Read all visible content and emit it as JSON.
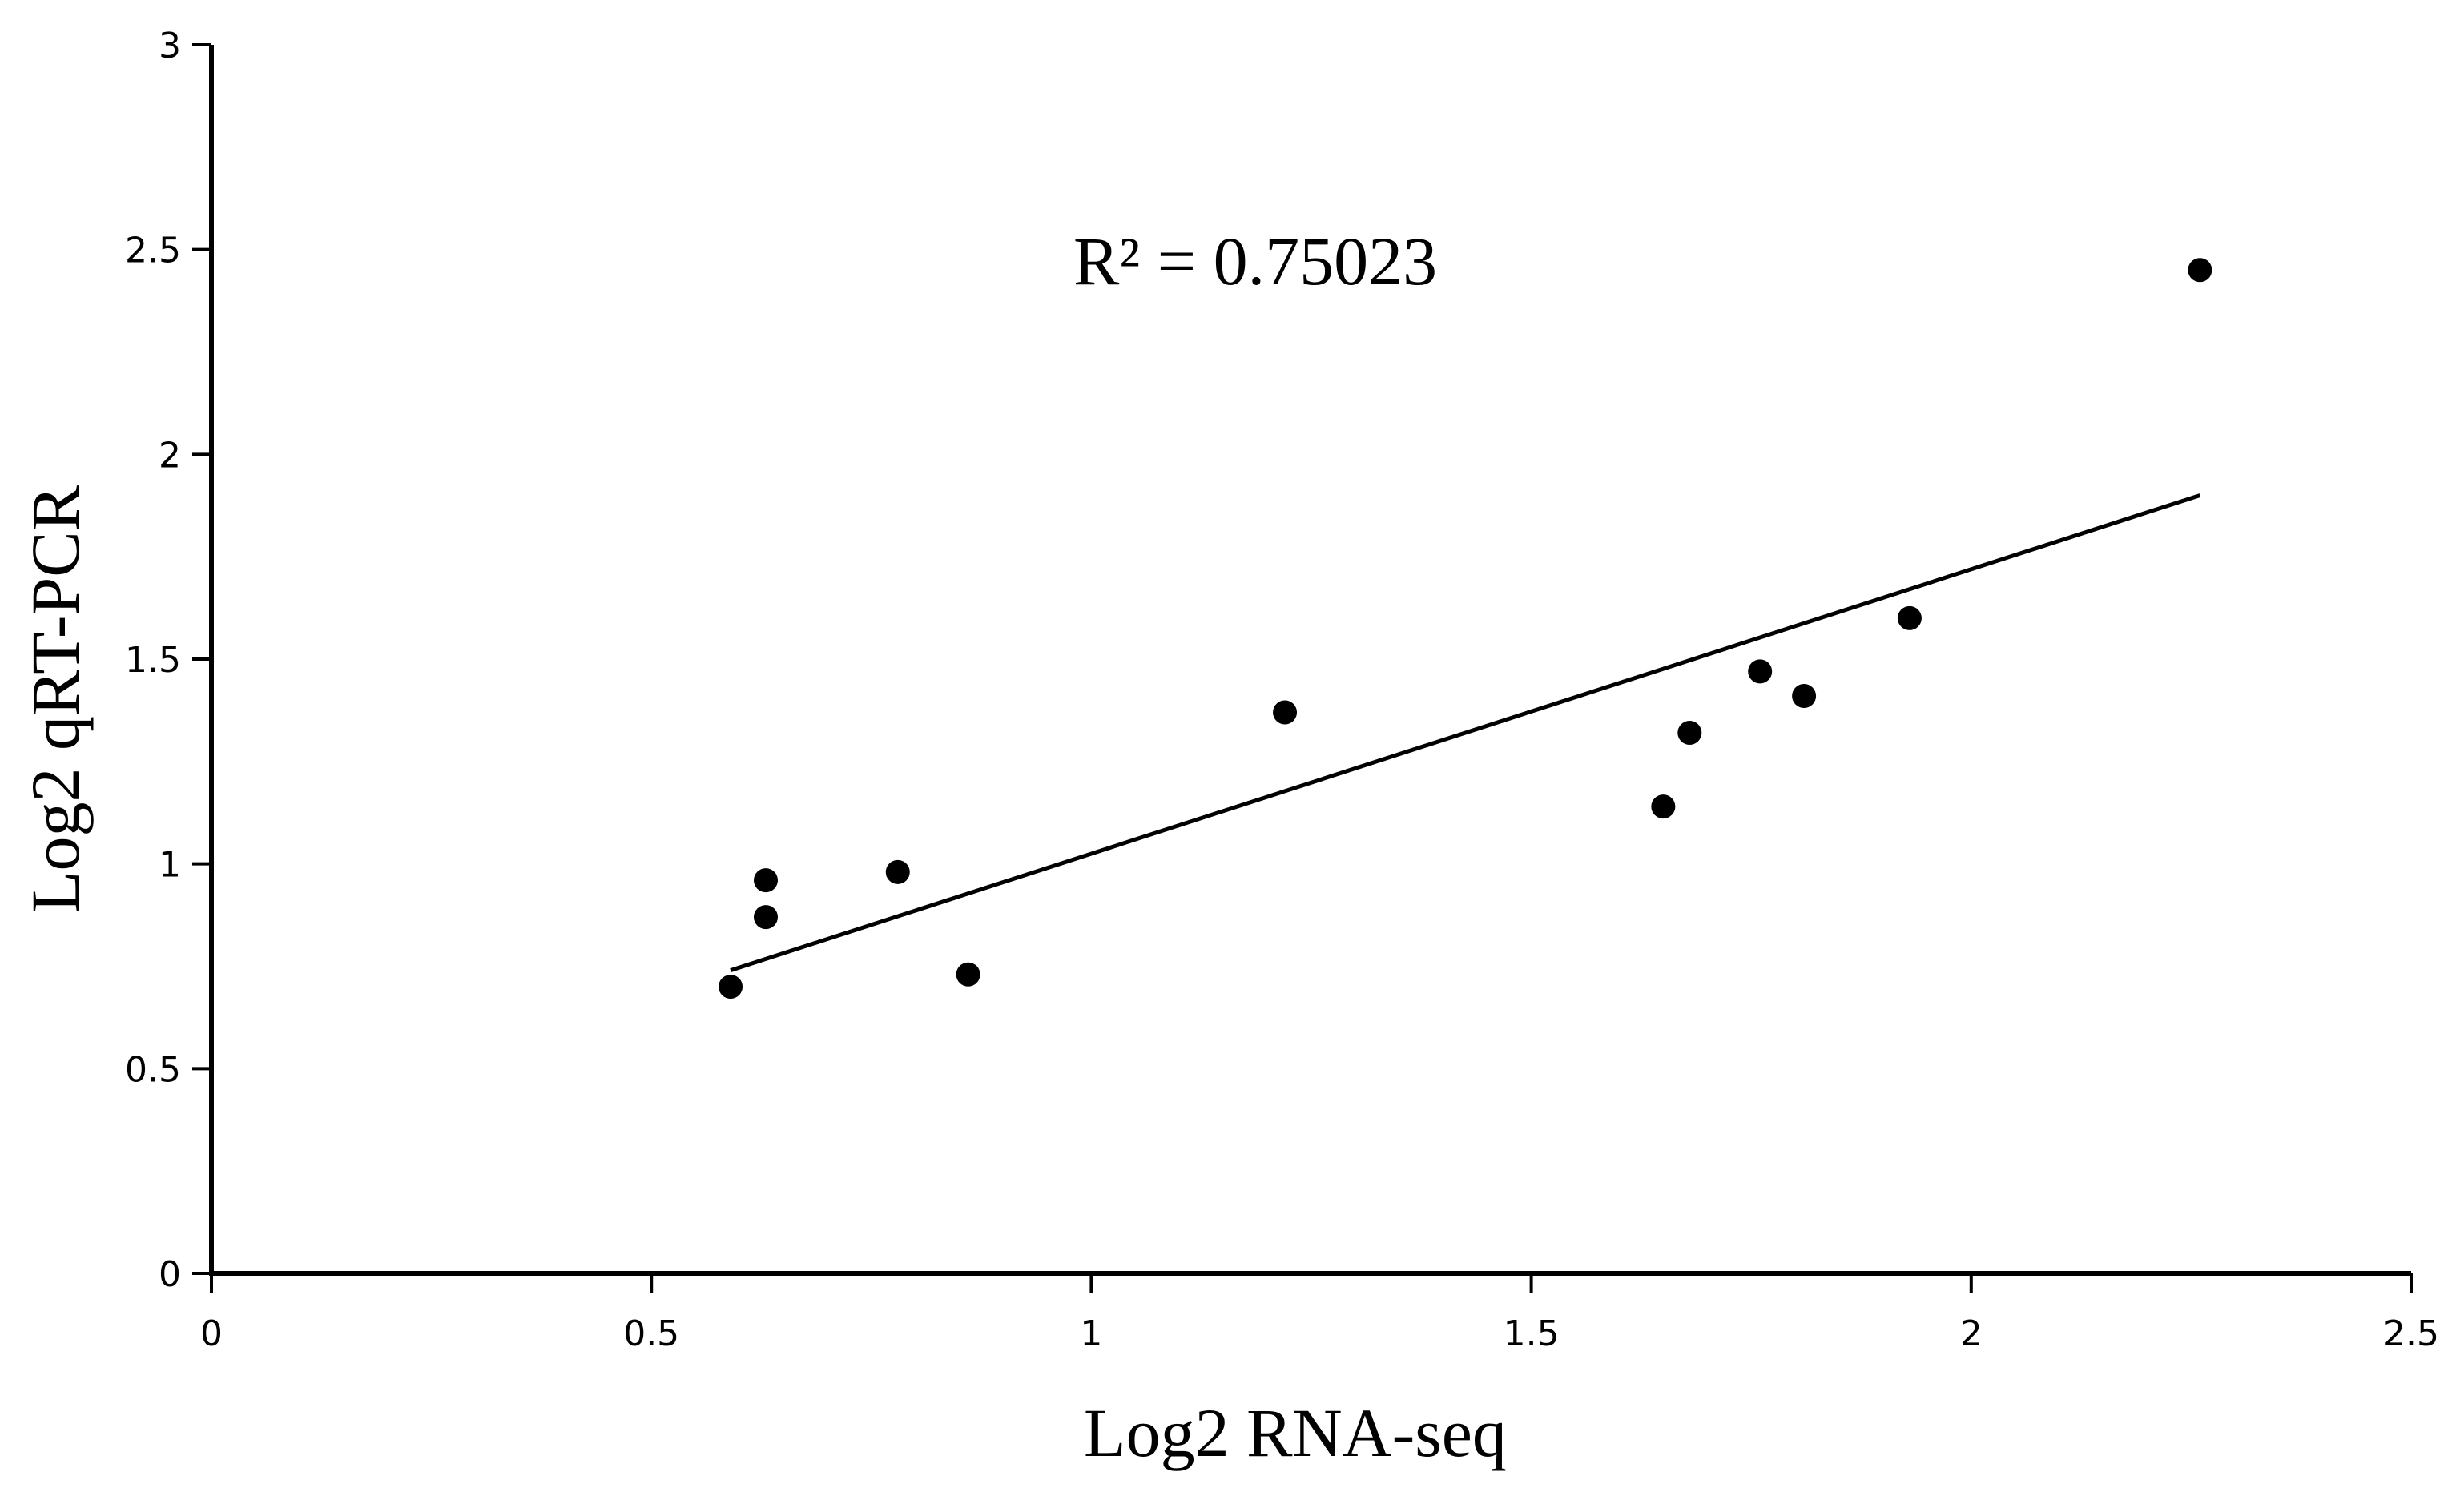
{
  "chart_data": {
    "type": "scatter",
    "xlabel": "Log2 RNA-seq",
    "ylabel": "Log2 qRT-PCR",
    "xlim": [
      0,
      2.5
    ],
    "ylim": [
      0,
      3
    ],
    "x_ticks": [
      0,
      0.5,
      1,
      1.5,
      2,
      2.5
    ],
    "x_tick_labels": [
      "0",
      "0.5",
      "1",
      "1.5",
      "2",
      "2.5"
    ],
    "y_ticks": [
      0,
      0.5,
      1,
      1.5,
      2,
      2.5,
      3
    ],
    "y_tick_labels": [
      "0",
      "0.5",
      "1",
      "1.5",
      "2",
      "2.5",
      "3"
    ],
    "grid": false,
    "series": [
      {
        "points": [
          {
            "x": 0.59,
            "y": 0.7
          },
          {
            "x": 0.63,
            "y": 0.96
          },
          {
            "x": 0.63,
            "y": 0.87
          },
          {
            "x": 0.78,
            "y": 0.98
          },
          {
            "x": 0.86,
            "y": 0.73
          },
          {
            "x": 1.22,
            "y": 1.37
          },
          {
            "x": 1.65,
            "y": 1.14
          },
          {
            "x": 1.68,
            "y": 1.32
          },
          {
            "x": 1.76,
            "y": 1.47
          },
          {
            "x": 1.81,
            "y": 1.41
          },
          {
            "x": 1.93,
            "y": 1.6
          },
          {
            "x": 2.26,
            "y": 2.45
          }
        ]
      }
    ],
    "trendline": {
      "x_start": 0.59,
      "y_start": 0.74,
      "x_end": 2.26,
      "y_end": 1.9
    },
    "annotation": "R² = 0.75023",
    "colors": {
      "points": "#000000",
      "line": "#000000",
      "axes": "#000000",
      "background": "#ffffff"
    }
  }
}
